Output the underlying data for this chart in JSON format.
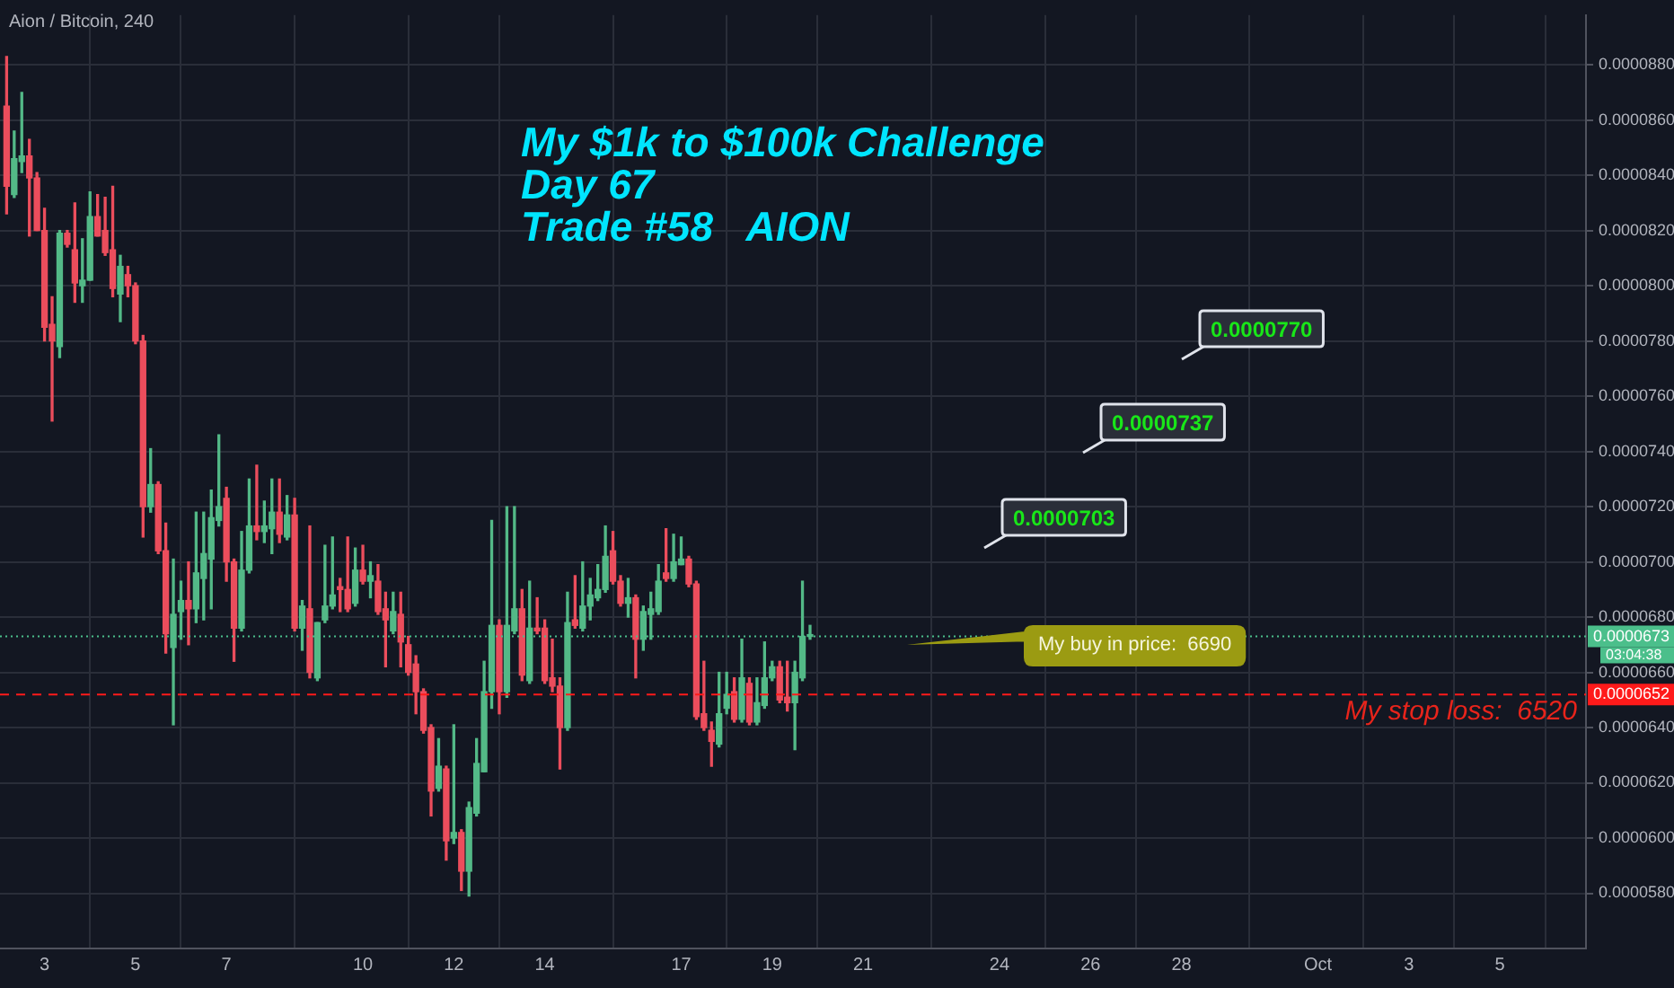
{
  "chart_data": {
    "type": "candlestick",
    "title": "My $1k to $100k Challenge\nDay 67\nTrade #58   AION",
    "subtitle": "Aion / Bitcoin, 240",
    "colors": [
      "#eb4d5c",
      "#53b987",
      "#53b987",
      "#eb4d5c",
      "#eb4d5c",
      "#eb4d5c",
      "#eb4d5c",
      "#53b987",
      "#eb4d5c",
      "#eb4d5c",
      "#53b987",
      "#53b987",
      "#eb4d5c",
      "#eb4d5c",
      "#eb4d5c",
      "#53b987",
      "#eb4d5c",
      "#eb4d5c",
      "#eb4d5c",
      "#53b987",
      "#eb4d5c",
      "#eb4d5c",
      "#53b987",
      "#53b987",
      "#eb4d5c",
      "#53b987",
      "#53b987",
      "#53b987",
      "#53b987",
      "#eb4d5c",
      "#eb4d5c",
      "#53b987",
      "#53b987",
      "#eb4d5c",
      "#53b987",
      "#53b987",
      "#eb4d5c",
      "#53b987",
      "#eb4d5c",
      "#53b987",
      "#eb4d5c",
      "#53b987",
      "#53b987",
      "#53b987",
      "#eb4d5c",
      "#eb4d5c",
      "#53b987",
      "#eb4d5c",
      "#53b987",
      "#eb4d5c",
      "#eb4d5c",
      "#53b987",
      "#eb4d5c",
      "#eb4d5c",
      "#eb4d5c",
      "#eb4d5c",
      "#eb4d5c",
      "#53b987",
      "#eb4d5c",
      "#53b987",
      "#eb4d5c",
      "#53b987",
      "#53b987",
      "#53b987",
      "#53b987",
      "#eb4d5c",
      "#53b987",
      "#53b987",
      "#eb4d5c",
      "#53b987",
      "#eb4d5c",
      "#eb4d5c",
      "#eb4d5c",
      "#eb4d5c",
      "#53b987",
      "#eb4d5c",
      "#53b987",
      "#53b987",
      "#53b987",
      "#53b987",
      "#eb4d5c",
      "#eb4d5c",
      "#53b987",
      "#eb4d5c",
      "#53b987",
      "#53b987",
      "#53b987",
      "#eb4d5c",
      "#53b987",
      "#53b987",
      "#eb4d5c",
      "#eb4d5c",
      "#eb4d5c",
      "#eb4d5c",
      "#53b987",
      "#53b987",
      "#eb4d5c",
      "#53b987",
      "#eb4d5c",
      "#53b987",
      "#53b987",
      "#53b987",
      "#eb4d5c",
      "#eb4d5c",
      "#53b987",
      "#53b987",
      "#53b987"
    ],
    "x": [
      "--09-02T04:00",
      "--09-02T08:00",
      "--09-02T12:00",
      "--09-02T16:00",
      "--09-02T20:00",
      "--09-03T00:00",
      "--09-03T04:00",
      "--09-03T08:00",
      "--09-03T12:00",
      "--09-03T16:00",
      "--09-03T20:00",
      "--09-04T00:00",
      "--09-04T04:00",
      "--09-04T08:00",
      "--09-04T12:00",
      "--09-04T16:00",
      "--09-04T20:00",
      "--09-05T00:00",
      "--09-05T04:00",
      "--09-05T08:00",
      "--09-05T12:00",
      "--09-05T16:00",
      "--09-05T20:00",
      "--09-06T00:00",
      "--09-06T04:00",
      "--09-06T08:00",
      "--09-06T12:00",
      "--09-06T16:00",
      "--09-06T20:00",
      "--09-07T00:00",
      "--09-07T04:00",
      "--09-07T08:00",
      "--09-07T12:00",
      "--09-07T16:00",
      "--09-07T20:00",
      "--09-08T00:00",
      "--09-08T04:00",
      "--09-08T08:00",
      "--09-08T12:00",
      "--09-08T16:00",
      "--09-08T20:00",
      "--09-09T00:00",
      "--09-09T04:00",
      "--09-09T08:00",
      "--09-09T12:00",
      "--09-09T16:00",
      "--09-09T20:00",
      "--09-10T00:00",
      "--09-10T04:00",
      "--09-10T08:00",
      "--09-10T12:00",
      "--09-10T16:00",
      "--09-10T20:00",
      "--09-11T00:00",
      "--09-11T04:00",
      "--09-11T08:00",
      "--09-11T12:00",
      "--09-11T16:00",
      "--09-11T20:00",
      "--09-12T00:00",
      "--09-12T04:00",
      "--09-12T08:00",
      "--09-12T12:00",
      "--09-12T16:00",
      "--09-12T20:00",
      "--09-13T00:00",
      "--09-13T04:00",
      "--09-13T08:00",
      "--09-13T12:00",
      "--09-13T16:00",
      "--09-13T20:00",
      "--09-14T00:00",
      "--09-14T04:00",
      "--09-14T08:00",
      "--09-14T12:00",
      "--09-14T16:00",
      "--09-14T20:00",
      "--09-15T00:00",
      "--09-15T04:00",
      "--09-15T08:00",
      "--09-15T12:00",
      "--09-15T16:00",
      "--09-15T20:00",
      "--09-16T00:00",
      "--09-16T04:00",
      "--09-16T08:00",
      "--09-16T12:00",
      "--09-16T16:00",
      "--09-16T20:00",
      "--09-17T00:00",
      "--09-17T04:00",
      "--09-17T08:00",
      "--09-17T12:00",
      "--09-17T16:00",
      "--09-17T20:00",
      "--09-18T00:00",
      "--09-18T04:00",
      "--09-18T08:00",
      "--09-18T12:00",
      "--09-18T16:00",
      "--09-18T20:00",
      "--09-19T00:00",
      "--09-19T04:00",
      "--09-19T08:00",
      "--09-19T12:00",
      "--09-19T16:00",
      "--09-19T20:00"
    ],
    "ohlc": [
      [
        8.65e-05,
        8.83e-05,
        8.26e-05,
        8.36e-05
      ],
      [
        8.33e-05,
        8.56e-05,
        8.32e-05,
        8.46e-05
      ],
      [
        8.45e-05,
        8.7e-05,
        8.41e-05,
        8.47e-05
      ],
      [
        8.47e-05,
        8.53e-05,
        8.18e-05,
        8.39e-05
      ],
      [
        8.39e-05,
        8.41e-05,
        8.2e-05,
        8.2e-05
      ],
      [
        8.2e-05,
        8.28e-05,
        7.8e-05,
        7.85e-05
      ],
      [
        7.86e-05,
        7.96e-05,
        7.51e-05,
        7.8e-05
      ],
      [
        7.78e-05,
        8.2e-05,
        7.74e-05,
        8.19e-05
      ],
      [
        8.19e-05,
        8.2e-05,
        8.14e-05,
        8.15e-05
      ],
      [
        8.13e-05,
        8.3e-05,
        7.94e-05,
        8.01e-05
      ],
      [
        8e-05,
        8.17e-05,
        7.94e-05,
        8.02e-05
      ],
      [
        8.02e-05,
        8.34e-05,
        8.02e-05,
        8.25e-05
      ],
      [
        8.25e-05,
        8.33e-05,
        8.18e-05,
        8.18e-05
      ],
      [
        8.2e-05,
        8.32e-05,
        8.11e-05,
        8.12e-05
      ],
      [
        8.13e-05,
        8.36e-05,
        7.96e-05,
        7.99e-05
      ],
      [
        7.97e-05,
        8.11e-05,
        7.87e-05,
        8.07e-05
      ],
      [
        8.04e-05,
        8.07e-05,
        7.96e-05,
        8e-05
      ],
      [
        8e-05,
        8.01e-05,
        7.79e-05,
        7.8e-05
      ],
      [
        7.8e-05,
        7.82e-05,
        7.09e-05,
        7.2e-05
      ],
      [
        7.2e-05,
        7.41e-05,
        7.18e-05,
        7.28e-05
      ],
      [
        7.28e-05,
        7.29e-05,
        7.03e-05,
        7.04e-05
      ],
      [
        7.04e-05,
        7.14e-05,
        6.67e-05,
        6.74e-05
      ],
      [
        6.69e-05,
        7.01e-05,
        6.41e-05,
        6.81e-05
      ],
      [
        6.82e-05,
        6.93e-05,
        6.72e-05,
        6.86e-05
      ],
      [
        6.86e-05,
        7e-05,
        6.7e-05,
        6.83e-05
      ],
      [
        6.83e-05,
        7.18e-05,
        6.78e-05,
        6.96e-05
      ],
      [
        6.94e-05,
        7.18e-05,
        6.79e-05,
        7.03e-05
      ],
      [
        7.01e-05,
        7.26e-05,
        6.83e-05,
        7.16e-05
      ],
      [
        7.15e-05,
        7.46e-05,
        7.13e-05,
        7.2e-05
      ],
      [
        7.23e-05,
        7.27e-05,
        6.93e-05,
        7e-05
      ],
      [
        7e-05,
        7.01e-05,
        6.64e-05,
        6.76e-05
      ],
      [
        6.76e-05,
        7.11e-05,
        6.75e-05,
        6.97e-05
      ],
      [
        6.97e-05,
        7.3e-05,
        6.96e-05,
        7.13e-05
      ],
      [
        7.13e-05,
        7.35e-05,
        7.08e-05,
        7.11e-05
      ],
      [
        7.11e-05,
        7.22e-05,
        7.07e-05,
        7.13e-05
      ],
      [
        7.12e-05,
        7.3e-05,
        7.03e-05,
        7.18e-05
      ],
      [
        7.18e-05,
        7.3e-05,
        7.07e-05,
        7.1e-05
      ],
      [
        7.09e-05,
        7.24e-05,
        7.08e-05,
        7.17e-05
      ],
      [
        7.17e-05,
        7.23e-05,
        6.75e-05,
        6.76e-05
      ],
      [
        6.76e-05,
        6.86e-05,
        6.68e-05,
        6.84e-05
      ],
      [
        6.83e-05,
        7.13e-05,
        6.58e-05,
        6.6e-05
      ],
      [
        6.58e-05,
        6.78e-05,
        6.57e-05,
        6.78e-05
      ],
      [
        6.79e-05,
        7.06e-05,
        6.78e-05,
        6.84e-05
      ],
      [
        6.84e-05,
        7.09e-05,
        6.83e-05,
        6.88e-05
      ],
      [
        6.91e-05,
        6.94e-05,
        6.82e-05,
        6.9e-05
      ],
      [
        6.9e-05,
        7.09e-05,
        6.82e-05,
        6.83e-05
      ],
      [
        6.85e-05,
        7.05e-05,
        6.84e-05,
        6.97e-05
      ],
      [
        6.97e-05,
        7.06e-05,
        6.92e-05,
        6.93e-05
      ],
      [
        6.93e-05,
        7e-05,
        6.87e-05,
        6.95e-05
      ],
      [
        6.93e-05,
        6.99e-05,
        6.81e-05,
        6.82e-05
      ],
      [
        6.83e-05,
        6.89e-05,
        6.62e-05,
        6.79e-05
      ],
      [
        6.75e-05,
        6.89e-05,
        6.74e-05,
        6.82e-05
      ],
      [
        6.81e-05,
        6.89e-05,
        6.62e-05,
        6.71e-05
      ],
      [
        6.7e-05,
        6.73e-05,
        6.59e-05,
        6.6e-05
      ],
      [
        6.63e-05,
        6.66e-05,
        6.45e-05,
        6.53e-05
      ],
      [
        6.53e-05,
        6.54e-05,
        6.38e-05,
        6.39e-05
      ],
      [
        6.4e-05,
        6.41e-05,
        6.08e-05,
        6.17e-05
      ],
      [
        6.18e-05,
        6.36e-05,
        6.17e-05,
        6.26e-05
      ],
      [
        6.25e-05,
        6.26e-05,
        5.92e-05,
        5.99e-05
      ],
      [
        6e-05,
        6.41e-05,
        5.98e-05,
        6.02e-05
      ],
      [
        6.02e-05,
        6.03e-05,
        5.81e-05,
        5.88e-05
      ],
      [
        5.88e-05,
        6.13e-05,
        5.79e-05,
        6.11e-05
      ],
      [
        6.09e-05,
        6.36e-05,
        6.08e-05,
        6.27e-05
      ],
      [
        6.24e-05,
        6.64e-05,
        6.24e-05,
        6.53e-05
      ],
      [
        6.53e-05,
        7.15e-05,
        6.47e-05,
        6.77e-05
      ],
      [
        6.77e-05,
        6.79e-05,
        6.45e-05,
        6.53e-05
      ],
      [
        6.53e-05,
        7.2e-05,
        6.51e-05,
        6.77e-05
      ],
      [
        6.75e-05,
        7.2e-05,
        6.74e-05,
        6.83e-05
      ],
      [
        6.83e-05,
        6.9e-05,
        6.57e-05,
        6.59e-05
      ],
      [
        6.57e-05,
        6.93e-05,
        6.56e-05,
        6.76e-05
      ],
      [
        6.76e-05,
        6.87e-05,
        6.74e-05,
        6.75e-05
      ],
      [
        6.76e-05,
        6.79e-05,
        6.56e-05,
        6.57e-05
      ],
      [
        6.58e-05,
        6.72e-05,
        6.53e-05,
        6.55e-05
      ],
      [
        6.55e-05,
        6.58e-05,
        6.25e-05,
        6.4e-05
      ],
      [
        6.4e-05,
        6.89e-05,
        6.39e-05,
        6.78e-05
      ],
      [
        6.79e-05,
        6.95e-05,
        6.76e-05,
        6.77e-05
      ],
      [
        6.76e-05,
        7e-05,
        6.75e-05,
        6.84e-05
      ],
      [
        6.84e-05,
        6.94e-05,
        6.79e-05,
        6.88e-05
      ],
      [
        6.87e-05,
        6.99e-05,
        6.86e-05,
        6.9e-05
      ],
      [
        6.9e-05,
        7.13e-05,
        6.89e-05,
        7.02e-05
      ],
      [
        7.04e-05,
        7.11e-05,
        6.92e-05,
        6.93e-05
      ],
      [
        6.93e-05,
        6.95e-05,
        6.84e-05,
        6.85e-05
      ],
      [
        6.85e-05,
        6.94e-05,
        6.8e-05,
        6.87e-05
      ],
      [
        6.87e-05,
        6.88e-05,
        6.58e-05,
        6.72e-05
      ],
      [
        6.72e-05,
        6.84e-05,
        6.68e-05,
        6.82e-05
      ],
      [
        6.81e-05,
        6.89e-05,
        6.72e-05,
        6.83e-05
      ],
      [
        6.82e-05,
        6.99e-05,
        6.81e-05,
        6.93e-05
      ],
      [
        6.96e-05,
        7.12e-05,
        6.93e-05,
        6.94e-05
      ],
      [
        6.94e-05,
        7.1e-05,
        6.93e-05,
        7e-05
      ],
      [
        6.99e-05,
        7.09e-05,
        6.99e-05,
        7.01e-05
      ],
      [
        7.01e-05,
        7.02e-05,
        6.91e-05,
        6.92e-05
      ],
      [
        6.92e-05,
        6.93e-05,
        6.43e-05,
        6.44e-05
      ],
      [
        6.45e-05,
        6.64e-05,
        6.39e-05,
        6.4e-05
      ],
      [
        6.39e-05,
        6.42e-05,
        6.26e-05,
        6.35e-05
      ],
      [
        6.34e-05,
        6.6e-05,
        6.33e-05,
        6.45e-05
      ],
      [
        6.47e-05,
        6.6e-05,
        6.45e-05,
        6.52e-05
      ],
      [
        6.53e-05,
        6.58e-05,
        6.42e-05,
        6.43e-05
      ],
      [
        6.43e-05,
        6.72e-05,
        6.42e-05,
        6.58e-05
      ],
      [
        6.56e-05,
        6.58e-05,
        6.41e-05,
        6.42e-05
      ],
      [
        6.42e-05,
        6.58e-05,
        6.41e-05,
        6.49e-05
      ],
      [
        6.48e-05,
        6.71e-05,
        6.47e-05,
        6.58e-05
      ],
      [
        6.58e-05,
        6.64e-05,
        6.57e-05,
        6.62e-05
      ],
      [
        6.62e-05,
        6.64e-05,
        6.49e-05,
        6.5e-05
      ],
      [
        6.51e-05,
        6.64e-05,
        6.46e-05,
        6.49e-05
      ],
      [
        6.49e-05,
        6.64e-05,
        6.32e-05,
        6.6e-05
      ],
      [
        6.58e-05,
        6.93e-05,
        6.57e-05,
        6.73e-05
      ],
      [
        6.73e-05,
        6.77e-05,
        6.72e-05,
        6.73e-05
      ]
    ],
    "xlim": [
      "--09-02T00:30",
      "--10-06T21:30"
    ],
    "ylim": [
      5.6e-05,
      8.98e-05
    ],
    "xticks": [
      {
        "value": "--09-03",
        "label": "3"
      },
      {
        "value": "--09-05",
        "label": "5"
      },
      {
        "value": "--09-07",
        "label": "7"
      },
      {
        "value": "--09-10",
        "label": "10"
      },
      {
        "value": "--09-12",
        "label": "12"
      },
      {
        "value": "--09-14",
        "label": "14"
      },
      {
        "value": "--09-17",
        "label": "17"
      },
      {
        "value": "--09-19",
        "label": "19"
      },
      {
        "value": "--09-21",
        "label": "21"
      },
      {
        "value": "--09-24",
        "label": "24"
      },
      {
        "value": "--09-26",
        "label": "26"
      },
      {
        "value": "--09-28",
        "label": "28"
      },
      {
        "value": "--10-01",
        "label": "Oct"
      },
      {
        "value": "--10-03",
        "label": "3"
      },
      {
        "value": "--10-05",
        "label": "5"
      }
    ],
    "yticks": [
      {
        "value": 5.8e-05,
        "label": "0.0000580"
      },
      {
        "value": 6e-05,
        "label": "0.0000600"
      },
      {
        "value": 6.2e-05,
        "label": "0.0000620"
      },
      {
        "value": 6.4e-05,
        "label": "0.0000640"
      },
      {
        "value": 6.6e-05,
        "label": "0.0000660"
      },
      {
        "value": 6.8e-05,
        "label": "0.0000680"
      },
      {
        "value": 7e-05,
        "label": "0.0000700"
      },
      {
        "value": 7.2e-05,
        "label": "0.0000720"
      },
      {
        "value": 7.4e-05,
        "label": "0.0000740"
      },
      {
        "value": 7.6e-05,
        "label": "0.0000760"
      },
      {
        "value": 7.8e-05,
        "label": "0.0000780"
      },
      {
        "value": 8e-05,
        "label": "0.0000800"
      },
      {
        "value": 8.2e-05,
        "label": "0.0000820"
      },
      {
        "value": 8.4e-05,
        "label": "0.0000840"
      },
      {
        "value": 8.6e-05,
        "label": "0.0000860"
      },
      {
        "value": 8.8e-05,
        "label": "0.0000880"
      }
    ],
    "grid": true,
    "ref_lines": [
      {
        "axis": "y",
        "value": 6.73e-05,
        "label": "0.0000673",
        "color": "#4bbf8b",
        "line_style": "dotted"
      },
      {
        "axis": "y",
        "value": 6.52e-05,
        "label": "0.0000652",
        "color": "#ff1a1a",
        "line_style": "dashed"
      }
    ],
    "annotations": [
      "My buy in price:  6690",
      "0.0000703",
      "0.0000737",
      "0.0000770",
      "My stop loss:  6520",
      "03:04:38"
    ]
  }
}
